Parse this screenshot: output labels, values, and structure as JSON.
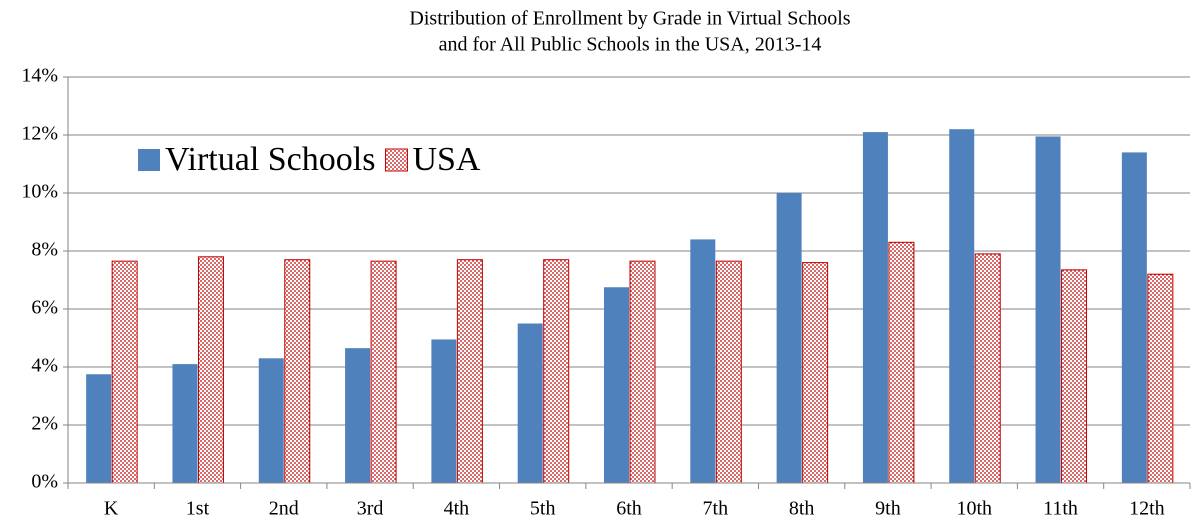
{
  "chart_data": {
    "type": "bar",
    "title": [
      "Distribution of Enrollment by Grade in Virtual Schools",
      "and for All Public Schools in the USA, 2013-14"
    ],
    "categories": [
      "K",
      "1st",
      "2nd",
      "3rd",
      "4th",
      "5th",
      "6th",
      "7th",
      "8th",
      "9th",
      "10th",
      "11th",
      "12th"
    ],
    "series": [
      {
        "name": "Virtual Schools",
        "color": "#4f81bd",
        "values": [
          3.75,
          4.1,
          4.3,
          4.65,
          4.95,
          5.5,
          6.75,
          8.4,
          10.0,
          12.1,
          12.2,
          11.95,
          11.4
        ]
      },
      {
        "name": "USA",
        "color": "#c00000",
        "pattern": "dots",
        "values": [
          7.65,
          7.8,
          7.7,
          7.65,
          7.7,
          7.7,
          7.65,
          7.65,
          7.6,
          8.3,
          7.9,
          7.35,
          7.2
        ]
      }
    ],
    "ylim": [
      0,
      14
    ],
    "yticks": [
      {
        "value": 0,
        "label": "0%"
      },
      {
        "value": 2,
        "label": "2%"
      },
      {
        "value": 4,
        "label": "4%"
      },
      {
        "value": 6,
        "label": "6%"
      },
      {
        "value": 8,
        "label": "8%"
      },
      {
        "value": 10,
        "label": "10%"
      },
      {
        "value": 12,
        "label": "12%"
      },
      {
        "value": 14,
        "label": "14%"
      }
    ],
    "grid": true,
    "legend": "upper left"
  }
}
